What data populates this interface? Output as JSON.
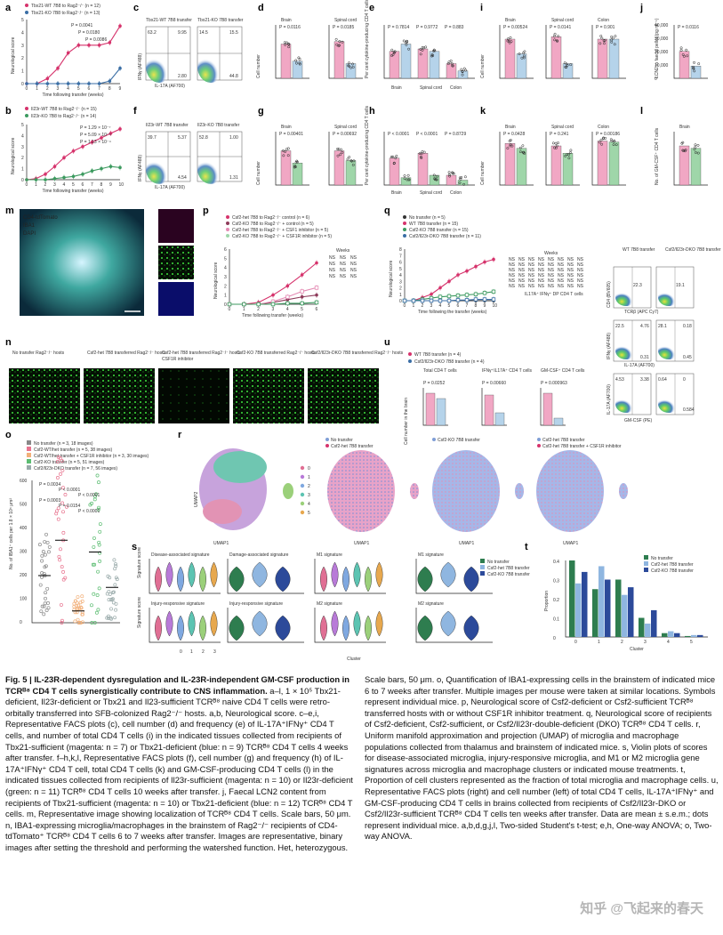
{
  "panel_labels": [
    "a",
    "b",
    "c",
    "d",
    "e",
    "i",
    "j",
    "f",
    "g",
    "h",
    "k",
    "l",
    "m",
    "p",
    "q",
    "n",
    "u",
    "o",
    "r",
    "s",
    "t"
  ],
  "panel_a": {
    "legend": [
      "Tbx21-WT 7B8 to Rag2⁻/⁻ (n = 12)",
      "Tbx21-KO 7B8 to Rag2⁻/⁻ (n = 13)"
    ],
    "xlabel": "Time following transfer (weeks)",
    "ylabel": "Neurological score",
    "pvals": [
      "P = 0.0041",
      "P = 0.0180",
      "P = 0.0086"
    ]
  },
  "panel_b": {
    "legend": [
      "Il23r-WT 7B8 to Rag2⁻/⁻ (n = 15)",
      "Il23r-KO 7B8 to Rag2⁻/⁻ (n = 14)"
    ],
    "xlabel": "Time following transfer (weeks)",
    "ylabel": "Neurological score",
    "pvals": [
      "P = 1.29 × 10⁻⁷",
      "P = 5.09 × 10⁻⁵",
      "P = 1.13 × 10⁻⁴"
    ]
  },
  "panel_c": {
    "titles": [
      "Tbx21-WT 7B8 transfer",
      "Tbx21-KO 7B8 transfer"
    ],
    "q1": [
      "63.2",
      "9.95",
      "2.80"
    ],
    "q2": [
      "14.5",
      "15.5",
      "44.8"
    ],
    "xlabel": "IL-17A (AF700)",
    "ylabel": "IFNγ (AF488)"
  },
  "panel_f": {
    "titles": [
      "Il23r-WT 7B8 transfer",
      "Il23r-KO 7B8 transfer"
    ],
    "q1": [
      "39.7",
      "5.37",
      "4.54"
    ],
    "q2": [
      "52.8",
      "1.00",
      "1.31"
    ],
    "xlabel": "IL-17A (AF700)",
    "ylabel": "IFNγ (AF488)"
  },
  "bar_titles": {
    "brain": "Brain",
    "spinal": "Spinal cord",
    "colon": "Colon"
  },
  "panel_d": {
    "ylabel": "Cell number",
    "pvals": [
      "P = 0.0116",
      "P = 0.0185"
    ]
  },
  "panel_e": {
    "ylabel": "Per cent cytokine-producing CD4 T cells",
    "pvals": [
      "P = 0.7814",
      "P = 0.9772",
      "P = 0.883"
    ]
  },
  "panel_g": {
    "ylabel": "Cell number",
    "pvals": [
      "P = 0.00401",
      "P = 0.00692"
    ]
  },
  "panel_h": {
    "ylabel": "Per cent cytokine-producing CD4 T cells",
    "pvals": [
      "P < 0.0001",
      "P < 0.0001",
      "P = 0.8729"
    ]
  },
  "panel_i": {
    "ylabel": "Cell number",
    "pvals": [
      "P = 0.00524",
      "P = 0.0141",
      "P = 0.901"
    ]
  },
  "panel_j": {
    "ylabel": "LCN2 in faecal pellet (pg ml⁻¹)",
    "pvals": [
      "P = 0.0116"
    ],
    "ticks": [
      "40,000",
      "30,000",
      "20,000",
      "10,000",
      "0"
    ]
  },
  "panel_k": {
    "ylabel": "Cell number",
    "pvals": [
      "P = 0.0428",
      "P = 0.241",
      "P = 0.00186"
    ]
  },
  "panel_l": {
    "ylabel": "No. of GM-CSF⁺ CD4 T cells"
  },
  "panel_m": {
    "channels": [
      "CD4-tdTomato",
      "IBA1",
      "DAPI"
    ]
  },
  "panel_p": {
    "legend": [
      "Csf2-het 7B8 to Rag2⁻/⁻ control (n = 6)",
      "Csf2-KO 7B8 to Rag2⁻/⁻ + control (n = 5)",
      "Csf2-het 7B8 to Rag2⁻/⁻ + CSF1 inhibitor (n = 5)",
      "Csf2-KO 7B8 to Rag2⁻/⁻ + CSF1R inhibitor (n = 5)"
    ],
    "xlabel": "Time following transfer (weeks)",
    "ylabel": "Neurological score",
    "weeks_label": "Weeks"
  },
  "panel_q": {
    "legend": [
      "No transfer (n = 5)",
      "WT 7B8 transfer (n = 15)",
      "Csf2-KO 7B8 transfer (n = 15)",
      "Csf2/Il23r-DKO 7B8 transfer (n = 11)"
    ],
    "xlabel": "Time following the transfer (weeks)",
    "ylabel": "Neurological score",
    "weeks_label": "Weeks",
    "stats_label": "NS"
  },
  "panel_n": {
    "titles": [
      "No transfer Rag2⁻/⁻ hosts",
      "Csf2-het 7B8 transferred Rag2⁻/⁻ hosts",
      "Csf2-het 7B8 transferred Rag2⁻/⁻ hosts CSF1R inhibitor",
      "Csf2-KO 7B8 transferred Rag2⁻/⁻ hosts",
      "Csf2/Il23r-DKO 7B8 transferred Rag2⁻/⁻ hosts"
    ]
  },
  "panel_u": {
    "legend": [
      "WT 7B8 transfer (n = 4)",
      "Csf2/Il23r-DKO 7B8 transfer (n = 4)"
    ],
    "titles": [
      "Total CD4 T cells",
      "IFNγ⁺IL17A⁺ CD4 T cells",
      "GM-CSF⁺ CD4 T cells"
    ],
    "pvals": [
      "P = 0.0252",
      "P = 0.00660",
      "P = 0.000963"
    ],
    "ylabel": "Cell number in the brain",
    "dp_label": "IL17A⁺ IFNγ⁺ DP CD4 T cells",
    "facs_titles": [
      "WT 7B8 transfer",
      "Csf2/Il23r-DKO 7B8 transfer"
    ],
    "facs_vals": [
      "22.3",
      "19.1",
      "22.5",
      "4.76",
      "0.31",
      "28.1",
      "0.18",
      "0.45",
      "4.53",
      "3.38",
      "0.64",
      "0",
      "0.584"
    ],
    "facs_axes": [
      "TCRβ (APC Cy7)",
      "CD4 (BV605)",
      "IL-17A (AF700)",
      "IFNγ (AF488)",
      "GM-CSF (PE)",
      "IL-17A (AF700)"
    ]
  },
  "panel_o": {
    "legend": [
      "No transfer (n = 3, 18 images)",
      "Csf2-WT/het transfer (n = 5, 38 images)",
      "Csf2-WT/het transfer + CSF1R inhibitor (n = 3, 30 images)",
      "Csf2-KO transfer (n = 5, 51 images)",
      "Csf2/Il23r-DKO transfer (n = 7, 56 images)"
    ],
    "ylabel": "No. of IBA1⁺ cells per 1.8 × 10⁵ μm²",
    "pvals": [
      "P = 0.0034",
      "P < 0.0001",
      "P < 0.0001",
      "P = 0.0003",
      "P = 0.0154",
      "P < 0.0001"
    ],
    "yticks": [
      "600",
      "500",
      "400",
      "300",
      "200",
      "100",
      "0"
    ]
  },
  "panel_r": {
    "clusters": [
      "0",
      "1",
      "2",
      "3",
      "4",
      "5"
    ],
    "titles": [
      "No transfer",
      "Csf2-het 7B8 transfer",
      "Csf2-KO 7B8 transfer",
      "Csf2-het 7B8 transfer",
      "Csf2-het 7B8 transfer + CSF1R inhibitor"
    ],
    "xlabel": "UMAP1",
    "ylabel": "UMAP2"
  },
  "panel_s": {
    "titles": [
      "Disease-associated signature",
      "Damage-associated signature",
      "M1 signature",
      "M1 signature",
      "Injury-responsive signature",
      "Injury-responsive signature",
      "M2 signature",
      "M2 signature"
    ],
    "legend": [
      "No transfer",
      "Csf2-het 7B8 transfer",
      "Csf2-KO 7B8 transfer"
    ],
    "xlabel": "Cluster",
    "ylabel": "Signature score"
  },
  "panel_t": {
    "legend": [
      "No transfer",
      "Csf2-het 7B8 transfer",
      "Csf2-KO 7B8 transfer"
    ],
    "xlabel": "Cluster",
    "ylabel": "Proportion",
    "yticks": [
      "0.4",
      "0.3",
      "0.2",
      "0.1",
      "0"
    ]
  },
  "chart_data": [
    {
      "type": "line",
      "title": "a",
      "x": [
        0,
        1,
        2,
        3,
        4,
        5,
        6,
        7,
        8,
        9
      ],
      "series": [
        {
          "name": "Tbx21-WT",
          "values": [
            0,
            0,
            0.4,
            1.2,
            2.4,
            3.0,
            3.0,
            3.0,
            3.2,
            4.5
          ]
        },
        {
          "name": "Tbx21-KO",
          "values": [
            0,
            0,
            0,
            0,
            0,
            0,
            0,
            0,
            0.2,
            1.2
          ]
        }
      ],
      "ylim": [
        0,
        5
      ],
      "xlabel": "Time following transfer (weeks)",
      "ylabel": "Neurological score"
    },
    {
      "type": "line",
      "title": "b",
      "x": [
        0,
        1,
        2,
        3,
        4,
        5,
        6,
        7,
        8,
        9,
        10
      ],
      "series": [
        {
          "name": "Il23r-WT",
          "values": [
            0,
            0.1,
            0.5,
            1.2,
            2.0,
            2.6,
            3.0,
            3.4,
            3.8,
            4.2,
            4.6
          ]
        },
        {
          "name": "Il23r-KO",
          "values": [
            0,
            0,
            0,
            0.1,
            0.2,
            0.3,
            0.5,
            0.8,
            1.0,
            1.2,
            1.1
          ]
        }
      ],
      "ylim": [
        0,
        5
      ],
      "xlabel": "Time following transfer (weeks)",
      "ylabel": "Neurological score"
    },
    {
      "type": "line",
      "title": "p",
      "x": [
        0,
        1,
        2,
        3,
        4,
        5,
        6
      ],
      "series": [
        {
          "name": "Csf2-het control",
          "values": [
            0,
            0,
            0.2,
            1.0,
            2.0,
            3.2,
            4.5
          ]
        },
        {
          "name": "Csf2-KO control",
          "values": [
            0,
            0,
            0,
            0.2,
            0.5,
            0.8,
            1.0
          ]
        },
        {
          "name": "Csf2-het + CSF1R inhibitor",
          "values": [
            0,
            0,
            0,
            0.3,
            0.8,
            1.4,
            1.8
          ]
        },
        {
          "name": "Csf2-KO + CSF1R inhibitor",
          "values": [
            0,
            0,
            0,
            0,
            0.1,
            0.1,
            0.2
          ]
        }
      ],
      "ylim": [
        0,
        6
      ],
      "xlabel": "Time following transfer (weeks)",
      "ylabel": "Neurological score"
    },
    {
      "type": "line",
      "title": "q",
      "x": [
        0,
        1,
        2,
        3,
        4,
        5,
        6,
        7,
        8,
        9,
        10
      ],
      "series": [
        {
          "name": "No transfer",
          "values": [
            0,
            0,
            0,
            0,
            0,
            0,
            0,
            0,
            0,
            0,
            0
          ]
        },
        {
          "name": "WT 7B8 transfer",
          "values": [
            0,
            0,
            0.5,
            1.0,
            2.0,
            3.0,
            4.0,
            4.6,
            5.3,
            6.0,
            6.4
          ]
        },
        {
          "name": "Csf2-KO 7B8 transfer",
          "values": [
            0,
            0,
            0.2,
            0.4,
            0.6,
            0.7,
            0.8,
            0.9,
            1.0,
            1.2,
            1.4
          ]
        },
        {
          "name": "Csf2/Il23r-DKO 7B8 transfer",
          "values": [
            0,
            0,
            0,
            0,
            0,
            0,
            0.1,
            0.1,
            0.2,
            0.2,
            0.2
          ]
        }
      ],
      "ylim": [
        0,
        8
      ],
      "xlabel": "Time following the transfer (weeks)",
      "ylabel": "Neurological score"
    },
    {
      "type": "bar",
      "title": "t",
      "categories": [
        "0",
        "1",
        "2",
        "3",
        "4",
        "5"
      ],
      "series": [
        {
          "name": "No transfer",
          "values": [
            0.4,
            0.25,
            0.3,
            0.1,
            0.02,
            0.005
          ]
        },
        {
          "name": "Csf2-het 7B8 transfer",
          "values": [
            0.28,
            0.37,
            0.22,
            0.07,
            0.03,
            0.01
          ]
        },
        {
          "name": "Csf2-KO 7B8 transfer",
          "values": [
            0.34,
            0.3,
            0.26,
            0.14,
            0.02,
            0.01
          ]
        }
      ],
      "ylim": [
        0,
        0.4
      ],
      "xlabel": "Cluster",
      "ylabel": "Proportion"
    }
  ],
  "colors": {
    "magenta": "#d6336c",
    "blue": "#3a6ea5",
    "green": "#3c9a5f",
    "pink": "#f1a7c4",
    "lightblue": "#b5d3ea",
    "lightgreen": "#9fd6a9",
    "no_transfer": "#2e7d4f",
    "het": "#8fb6e0",
    "ko": "#2c4a9a"
  },
  "caption_left": [
    {
      "b": "Fig. 5 | IL-23R-dependent dysregulation and IL-23R-independent GM-CSF production in TCRᴮ⁸ CD4 T cells synergistically contribute to CNS inflammation.",
      "t": " a–l, 1 × 10⁵ Tbx21-deficient, Il23r-deficient or Tbx21 and Il23-sufficient TCRᴮ⁸ naive CD4 T cells were retro-orbitally transferred into SFB-colonized Rag2⁻/⁻ hosts. a,b, Neurological score. c–e,i, Representative FACS plots (c), cell number (d) and frequency (e) of IL-17A⁺IFNγ⁺ CD4 T cells, and number of total CD4 T cells (i) in the indicated tissues collected from recipients of Tbx21-sufficient (magenta: n = 7) or Tbx21-deficient (blue: n = 9) TCRᴮ⁸ CD4 T cells 4 weeks after transfer. f–h,k,l, Representative FACS plots (f), cell number (g) and frequency (h) of IL-17A⁺IFNγ⁺ CD4 T cell, total CD4 T cells (k) and GM-CSF-producing CD4 T cells (l) in the indicated tissues collected from recipients of Il23r-sufficient (magenta: n = 10) or Il23r-deficient (green: n = 11) TCRᴮ⁸ CD4 T cells 10 weeks after transfer. j, Faecal LCN2 content from recipients of Tbx21-sufficient (magenta: n = 10) or Tbx21-deficient (blue: n = 12) TCRᴮ⁸ CD4 T cells. m, Representative image showing localization of TCRᴮ⁸ CD4 T cells. Scale bars, 50 μm. n, IBA1-expressing microglia/macrophages in the brainstem of Rag2⁻/⁻ recipients of CD4-tdTomato⁺ TCRᴮ⁸ CD4 T cells 6 to 7 weeks after transfer. Images are representative, binary images after setting the threshold and performing the watershed function. Het, heterozygous."
    }
  ],
  "caption_right": "Scale bars, 50 μm. o, Quantification of IBA1-expressing cells in the brainstem of indicated mice 6 to 7 weeks after transfer. Multiple images per mouse were taken at similar locations. Symbols represent individual mice. p, Neurological score of Csf2-deficient or Csf2-sufficient TCRᴮ⁸ transferred hosts with or without CSF1R inhibitor treatment. q, Neurological score of recipients of Csf2-deficient, Csf2-sufficient, or Csf2/Il23r-double-deficient (DKO) TCRᴮ⁸ CD4 T cells. r, Uniform manifold approximation and projection (UMAP) of microglia and macrophage populations collected from thalamus and brainstem of indicated mice. s, Violin plots of scores for disease-associated microglia, injury-responsive microglia, and M1 or M2 microglia gene signatures across microglia and macrophage clusters or indicated mouse treatments. t, Proportion of cell clusters represented as the fraction of total microglia and macrophage cells. u, Representative FACS plots (right) and cell number (left) of total CD4 T cells, IL-17A⁺IFNγ⁺ and GM-CSF-producing CD4 T cells in brains collected from recipients of Csf2/Il23r-DKO or Csf2/Il23r-sufficient TCRᴮ⁸ CD4 T cells ten weeks after transfer. Data are mean ± s.e.m.; dots represent individual mice. a,b,d,g,j,l, Two-sided Student's t-test; e,h, One-way ANOVA; o, Two-way ANOVA.",
  "watermark": "知乎 @飞起来的春天"
}
